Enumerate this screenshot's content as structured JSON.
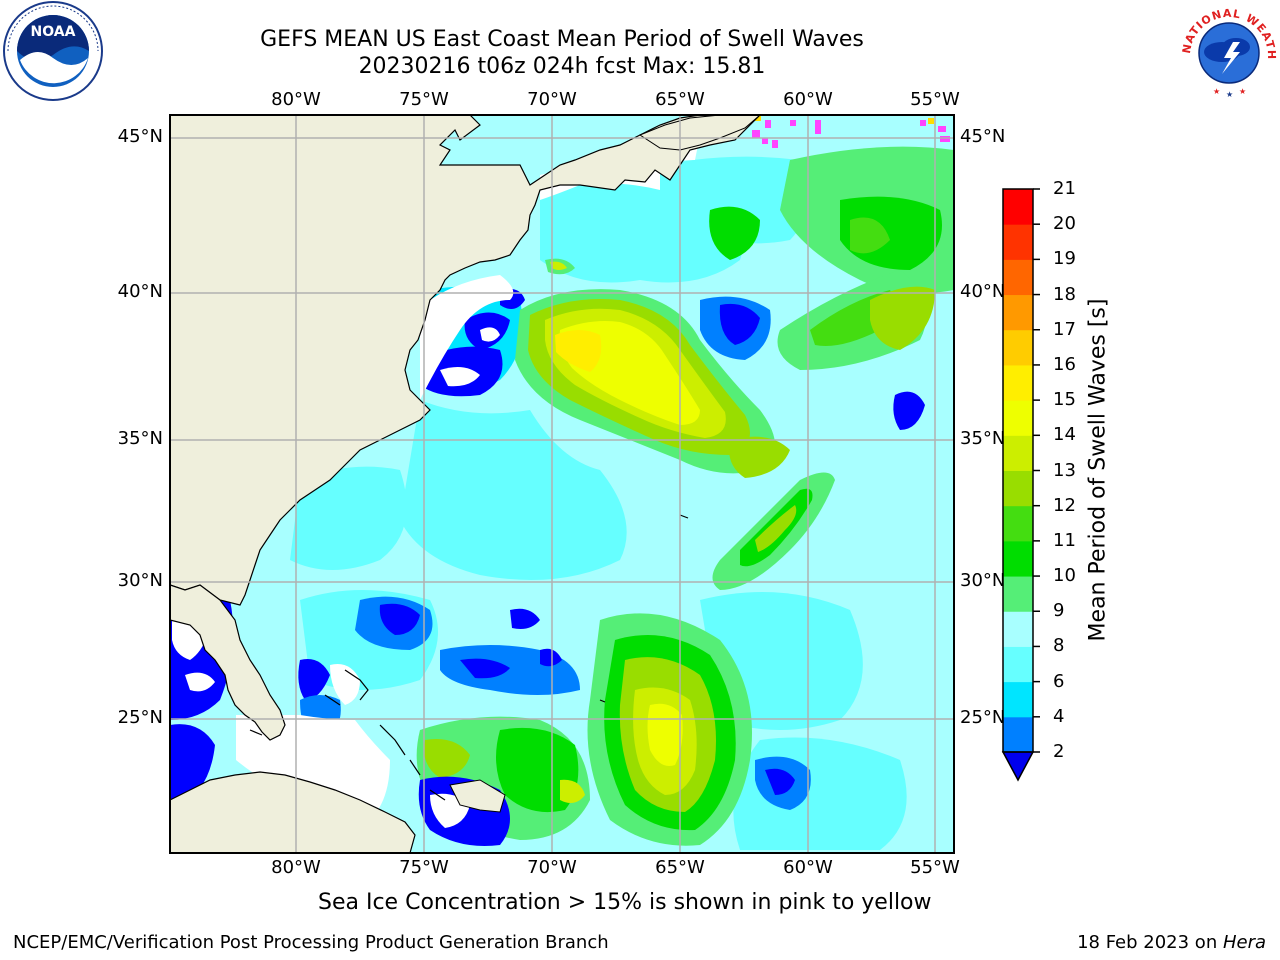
{
  "title_line1": "GEFS MEAN US East Coast Mean Period of Swell Waves",
  "title_line2": "20230216 t06z 024h fcst   Max: 15.81",
  "lon_labels": [
    "80°W",
    "75°W",
    "70°W",
    "65°W",
    "60°W",
    "55°W"
  ],
  "lat_labels": [
    "45°N",
    "40°N",
    "35°N",
    "30°N",
    "25°N"
  ],
  "colorbar": {
    "title": "Mean Period of Swell Waves [s]",
    "ticks": [
      "2",
      "4",
      "6",
      "8",
      "9",
      "10",
      "11",
      "12",
      "13",
      "14",
      "15",
      "16",
      "17",
      "18",
      "19",
      "20",
      "21"
    ],
    "colors": [
      "#0000ff",
      "#0080ff",
      "#00e5ff",
      "#66ffff",
      "#a8ffff",
      "#55ee77",
      "#00dd00",
      "#44dd11",
      "#99dd00",
      "#ccee00",
      "#eeff00",
      "#ffee00",
      "#ffcc00",
      "#ff9900",
      "#ff6600",
      "#ff3300",
      "#ff0000"
    ],
    "extend_color": "#0000ee"
  },
  "footnote": "Sea Ice Concentration > 15% is shown in pink to yellow",
  "credit": "NCEP/EMC/Verification Post Processing Product Generation Branch",
  "date_text": "18 Feb 2023 on ",
  "date_host": "Hera",
  "logos": {
    "left": "NOAA",
    "right": "NATIONAL WEATHER SERVICE"
  }
}
